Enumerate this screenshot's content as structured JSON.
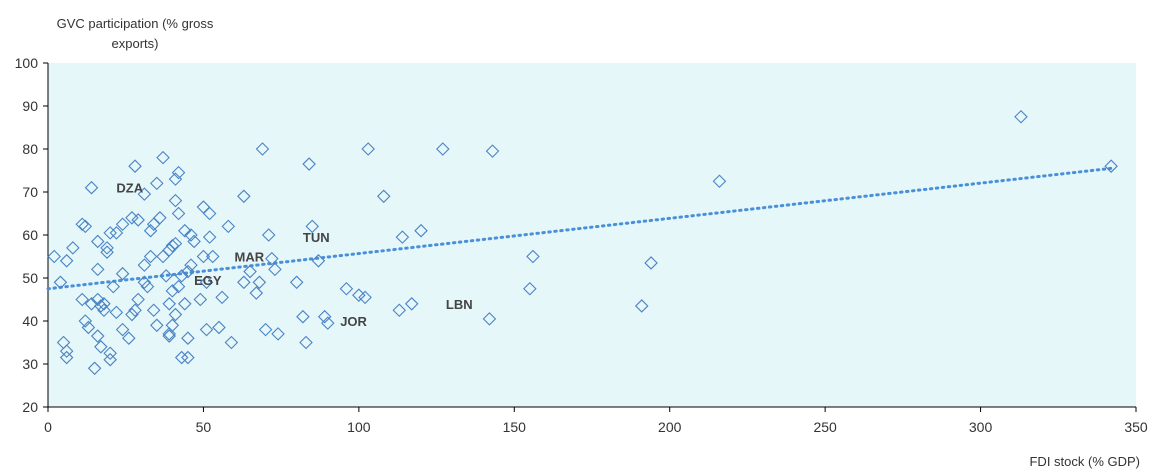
{
  "chart_data": {
    "type": "scatter",
    "title": "",
    "ylabel": "GVC participation (% gross exports)",
    "ylabel_lines": [
      "GVC participation (% gross",
      "exports)"
    ],
    "xlabel": "FDI stock (% GDP)",
    "xlim": [
      0,
      350
    ],
    "ylim": [
      20,
      100
    ],
    "xticks": [
      0,
      50,
      100,
      150,
      200,
      250,
      300,
      350
    ],
    "yticks": [
      20,
      30,
      40,
      50,
      60,
      70,
      80,
      90,
      100
    ],
    "grid": false,
    "trendline": {
      "x": [
        0,
        342
      ],
      "y": [
        47.5,
        75.5
      ],
      "style": "dotted"
    },
    "colors": {
      "plot_bg": "#E6F7FA",
      "marker": "#4A84C4",
      "trend": "#4A90D9",
      "axis": "#000000"
    },
    "labels": [
      {
        "text": "DZA",
        "x": 22,
        "y": 71
      },
      {
        "text": "TUN",
        "x": 82,
        "y": 59.5
      },
      {
        "text": "MAR",
        "x": 60,
        "y": 55
      },
      {
        "text": "EGY",
        "x": 47,
        "y": 49.5
      },
      {
        "text": "LBN",
        "x": 128,
        "y": 44
      },
      {
        "text": "JOR",
        "x": 94,
        "y": 40
      }
    ],
    "points": [
      [
        2,
        55
      ],
      [
        4,
        49
      ],
      [
        5,
        35
      ],
      [
        6,
        33
      ],
      [
        6,
        31.5
      ],
      [
        6,
        54
      ],
      [
        8,
        57
      ],
      [
        11,
        45
      ],
      [
        11,
        62.5
      ],
      [
        12,
        62
      ],
      [
        12,
        40
      ],
      [
        13,
        38.5
      ],
      [
        14,
        44
      ],
      [
        14,
        71
      ],
      [
        15,
        29
      ],
      [
        16,
        52
      ],
      [
        16,
        58.5
      ],
      [
        16,
        36.5
      ],
      [
        16,
        45
      ],
      [
        17,
        34
      ],
      [
        17,
        43.5
      ],
      [
        18,
        44
      ],
      [
        18,
        42.5
      ],
      [
        19,
        57
      ],
      [
        19,
        56
      ],
      [
        20,
        60.5
      ],
      [
        20,
        31
      ],
      [
        20,
        32.5
      ],
      [
        21,
        48
      ],
      [
        22,
        42
      ],
      [
        22,
        60.5
      ],
      [
        24,
        51
      ],
      [
        24,
        38
      ],
      [
        24,
        62.5
      ],
      [
        26,
        36
      ],
      [
        27,
        41.5
      ],
      [
        27,
        64
      ],
      [
        28,
        42.5
      ],
      [
        28,
        76
      ],
      [
        29,
        45
      ],
      [
        29,
        63.5
      ],
      [
        31,
        53
      ],
      [
        31,
        49
      ],
      [
        31,
        69.5
      ],
      [
        32,
        48
      ],
      [
        33,
        55
      ],
      [
        33,
        61
      ],
      [
        34,
        42.5
      ],
      [
        34,
        62.5
      ],
      [
        35,
        39
      ],
      [
        35,
        72
      ],
      [
        36,
        64
      ],
      [
        37,
        78
      ],
      [
        37,
        55
      ],
      [
        38,
        50.5
      ],
      [
        39,
        56.5
      ],
      [
        39,
        36.5
      ],
      [
        39,
        44
      ],
      [
        39,
        37
      ],
      [
        40,
        39
      ],
      [
        40,
        47
      ],
      [
        40,
        57.5
      ],
      [
        41,
        73
      ],
      [
        41,
        68
      ],
      [
        41,
        58
      ],
      [
        41,
        41.5
      ],
      [
        42,
        74.5
      ],
      [
        42,
        65
      ],
      [
        42,
        48
      ],
      [
        43,
        31.5
      ],
      [
        43,
        50.5
      ],
      [
        44,
        44
      ],
      [
        44,
        61
      ],
      [
        45,
        31.5
      ],
      [
        45,
        36
      ],
      [
        45,
        51.5
      ],
      [
        46,
        53
      ],
      [
        46,
        60
      ],
      [
        47,
        58.5
      ],
      [
        49,
        45
      ],
      [
        50,
        55
      ],
      [
        50,
        66.5
      ],
      [
        51,
        38
      ],
      [
        51,
        49
      ],
      [
        52,
        59.5
      ],
      [
        52,
        65
      ],
      [
        53,
        55
      ],
      [
        55,
        38.5
      ],
      [
        56,
        45.5
      ],
      [
        58,
        62
      ],
      [
        59,
        35
      ],
      [
        63,
        49
      ],
      [
        63,
        69
      ],
      [
        65,
        51.5
      ],
      [
        67,
        46.5
      ],
      [
        68,
        49
      ],
      [
        69,
        80
      ],
      [
        70,
        38
      ],
      [
        71,
        60
      ],
      [
        72,
        54.5
      ],
      [
        73,
        52
      ],
      [
        74,
        37
      ],
      [
        80,
        49
      ],
      [
        82,
        41
      ],
      [
        83,
        35
      ],
      [
        84,
        76.5
      ],
      [
        85,
        62
      ],
      [
        87,
        54
      ],
      [
        89,
        41
      ],
      [
        90,
        39.5
      ],
      [
        96,
        47.5
      ],
      [
        100,
        46
      ],
      [
        102,
        45.5
      ],
      [
        103,
        80
      ],
      [
        108,
        69
      ],
      [
        113,
        42.5
      ],
      [
        114,
        59.5
      ],
      [
        117,
        44
      ],
      [
        120,
        61
      ],
      [
        127,
        80
      ],
      [
        142,
        40.5
      ],
      [
        143,
        79.5
      ],
      [
        155,
        47.5
      ],
      [
        156,
        55
      ],
      [
        191,
        43.5
      ],
      [
        194,
        53.5
      ],
      [
        216,
        72.5
      ],
      [
        313,
        87.5
      ],
      [
        342,
        76
      ]
    ]
  }
}
